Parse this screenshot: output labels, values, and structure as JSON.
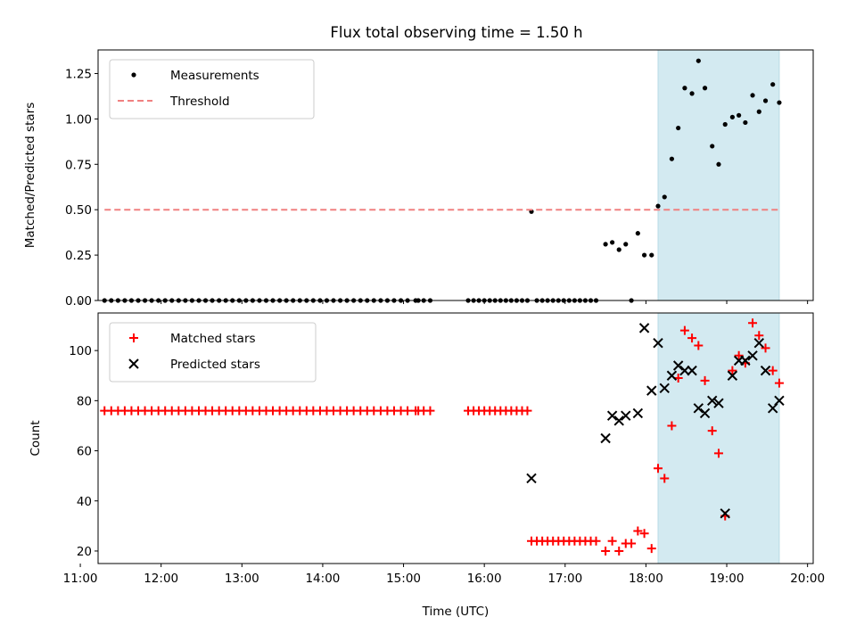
{
  "figure": {
    "title": "Flux total observing time = 1.50 h"
  },
  "chart_data": [
    {
      "type": "scatter",
      "panel": "top",
      "ylabel": "Matched/Predicted stars",
      "xlim": [
        11.22,
        20.07
      ],
      "ylim": [
        0.0,
        1.38
      ],
      "yticks": [
        0.0,
        0.25,
        0.5,
        0.75,
        1.0,
        1.25
      ],
      "ytick_labels": [
        "0.00",
        "0.25",
        "0.50",
        "0.75",
        "1.00",
        "1.25"
      ],
      "legend_position": "upper left",
      "shaded_region": {
        "x": [
          18.15,
          19.65
        ],
        "color": "#d3eaf1"
      },
      "series": [
        {
          "name": "Measurements",
          "marker": "dot",
          "color": "#000000",
          "x": [
            11.3,
            11.383,
            11.467,
            11.55,
            11.633,
            11.717,
            11.8,
            11.883,
            11.967,
            12.05,
            12.133,
            12.217,
            12.3,
            12.383,
            12.467,
            12.55,
            12.633,
            12.717,
            12.8,
            12.883,
            12.967,
            13.05,
            13.133,
            13.217,
            13.3,
            13.383,
            13.467,
            13.55,
            13.633,
            13.717,
            13.8,
            13.883,
            13.967,
            14.05,
            14.133,
            14.217,
            14.3,
            14.383,
            14.467,
            14.55,
            14.633,
            14.717,
            14.8,
            14.883,
            14.967,
            15.05,
            15.15,
            15.183,
            15.25,
            15.33,
            15.8,
            15.867,
            15.933,
            16.0,
            16.067,
            16.133,
            16.2,
            16.267,
            16.333,
            16.4,
            16.467,
            16.533,
            16.583,
            16.65,
            16.717,
            16.783,
            16.85,
            16.917,
            16.983,
            17.05,
            17.117,
            17.183,
            17.25,
            17.317,
            17.383,
            17.5,
            17.583,
            17.667,
            17.75,
            17.82,
            17.9,
            17.98,
            18.07,
            18.15,
            18.23,
            18.32,
            18.4,
            18.48,
            18.57,
            18.65,
            18.73,
            18.82,
            18.9,
            18.98,
            19.07,
            19.15,
            19.23,
            19.32,
            19.4,
            19.48,
            19.57,
            19.65
          ],
          "y": [
            0,
            0,
            0,
            0,
            0,
            0,
            0,
            0,
            0,
            0,
            0,
            0,
            0,
            0,
            0,
            0,
            0,
            0,
            0,
            0,
            0,
            0,
            0,
            0,
            0,
            0,
            0,
            0,
            0,
            0,
            0,
            0,
            0,
            0,
            0,
            0,
            0,
            0,
            0,
            0,
            0,
            0,
            0,
            0,
            0,
            0,
            0,
            0,
            0,
            0,
            0,
            0,
            0,
            0,
            0,
            0,
            0,
            0,
            0,
            0,
            0,
            0,
            0.49,
            0,
            0,
            0,
            0,
            0,
            0,
            0,
            0,
            0,
            0,
            0,
            0,
            0.31,
            0.32,
            0.28,
            0.31,
            0.0,
            0.37,
            0.25,
            0.25,
            0.52,
            0.57,
            0.78,
            0.95,
            1.17,
            1.14,
            1.32,
            1.17,
            0.85,
            0.75,
            0.97,
            1.01,
            1.02,
            0.98,
            1.13,
            1.04,
            1.1,
            1.19,
            1.09
          ]
        },
        {
          "name": "Threshold",
          "marker": "dashed-line",
          "color": "#f08080",
          "x": [
            11.3,
            19.65
          ],
          "y": [
            0.5,
            0.5
          ]
        }
      ]
    },
    {
      "type": "scatter",
      "panel": "bottom",
      "xlabel": "Time (UTC)",
      "ylabel": "Count",
      "xlim": [
        11.22,
        20.07
      ],
      "ylim": [
        15,
        115
      ],
      "yticks": [
        20,
        40,
        60,
        80,
        100
      ],
      "ytick_labels": [
        "20",
        "40",
        "60",
        "80",
        "100"
      ],
      "xticks": [
        11,
        12,
        13,
        14,
        15,
        16,
        17,
        18,
        19,
        20
      ],
      "xtick_labels": [
        "11:00",
        "12:00",
        "13:00",
        "14:00",
        "15:00",
        "16:00",
        "17:00",
        "18:00",
        "19:00",
        "20:00"
      ],
      "legend_position": "upper left",
      "shaded_region": {
        "x": [
          18.15,
          19.65
        ],
        "color": "#d3eaf1"
      },
      "series": [
        {
          "name": "Matched stars",
          "marker": "plus",
          "color": "#ff0000",
          "x": [
            11.3,
            11.383,
            11.467,
            11.55,
            11.633,
            11.717,
            11.8,
            11.883,
            11.967,
            12.05,
            12.133,
            12.217,
            12.3,
            12.383,
            12.467,
            12.55,
            12.633,
            12.717,
            12.8,
            12.883,
            12.967,
            13.05,
            13.133,
            13.217,
            13.3,
            13.383,
            13.467,
            13.55,
            13.633,
            13.717,
            13.8,
            13.883,
            13.967,
            14.05,
            14.133,
            14.217,
            14.3,
            14.383,
            14.467,
            14.55,
            14.633,
            14.717,
            14.8,
            14.883,
            14.967,
            15.05,
            15.15,
            15.183,
            15.25,
            15.33,
            15.8,
            15.867,
            15.933,
            16.0,
            16.067,
            16.133,
            16.2,
            16.267,
            16.333,
            16.4,
            16.467,
            16.533,
            16.583,
            16.65,
            16.717,
            16.783,
            16.85,
            16.917,
            16.983,
            17.05,
            17.117,
            17.183,
            17.25,
            17.317,
            17.383,
            17.5,
            17.583,
            17.667,
            17.75,
            17.82,
            17.9,
            17.98,
            18.07,
            18.15,
            18.23,
            18.32,
            18.4,
            18.48,
            18.57,
            18.65,
            18.73,
            18.82,
            18.9,
            18.98,
            19.07,
            19.15,
            19.23,
            19.32,
            19.4,
            19.48,
            19.57,
            19.65
          ],
          "y": [
            76,
            76,
            76,
            76,
            76,
            76,
            76,
            76,
            76,
            76,
            76,
            76,
            76,
            76,
            76,
            76,
            76,
            76,
            76,
            76,
            76,
            76,
            76,
            76,
            76,
            76,
            76,
            76,
            76,
            76,
            76,
            76,
            76,
            76,
            76,
            76,
            76,
            76,
            76,
            76,
            76,
            76,
            76,
            76,
            76,
            76,
            76,
            76,
            76,
            76,
            76,
            76,
            76,
            76,
            76,
            76,
            76,
            76,
            76,
            76,
            76,
            76,
            24,
            24,
            24,
            24,
            24,
            24,
            24,
            24,
            24,
            24,
            24,
            24,
            24,
            20,
            24,
            20,
            23,
            23,
            28,
            27,
            21,
            53,
            49,
            70,
            89,
            108,
            105,
            102,
            88,
            68,
            59,
            34,
            92,
            98,
            95,
            111,
            106,
            101,
            92,
            87
          ]
        },
        {
          "name": "Predicted stars",
          "marker": "x",
          "color": "#000000",
          "x": [
            16.583,
            17.5,
            17.583,
            17.667,
            17.75,
            17.9,
            17.98,
            18.07,
            18.15,
            18.23,
            18.32,
            18.4,
            18.48,
            18.57,
            18.65,
            18.73,
            18.82,
            18.9,
            18.98,
            19.07,
            19.15,
            19.23,
            19.32,
            19.4,
            19.48,
            19.57,
            19.65
          ],
          "y": [
            49,
            65,
            74,
            72,
            74,
            75,
            109,
            84,
            103,
            85,
            90,
            94,
            92,
            92,
            77,
            75,
            80,
            79,
            35,
            90,
            96,
            96,
            98,
            103,
            92,
            77,
            80
          ]
        }
      ]
    }
  ]
}
